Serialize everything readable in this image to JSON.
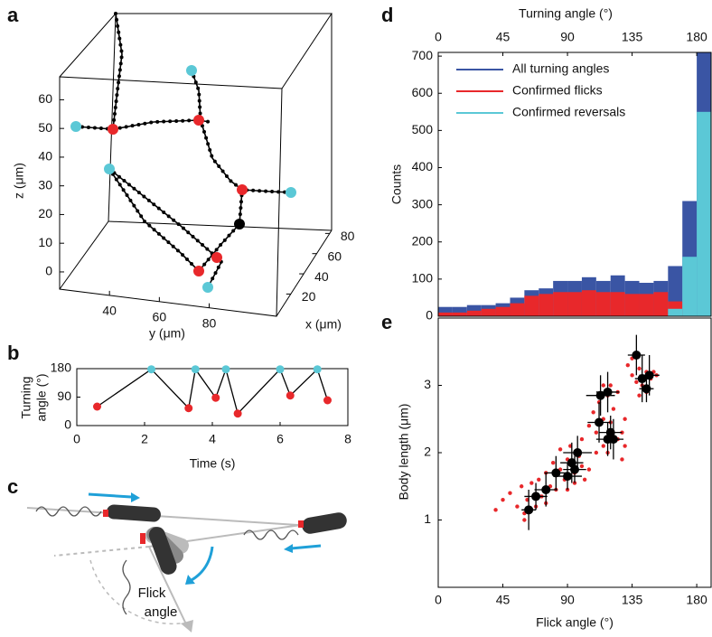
{
  "chart_data": [
    {
      "panel_label": "a",
      "type": "trajectory3d",
      "xlabel": "x (μm)",
      "ylabel": "y (μm)",
      "zlabel": "z (μm)",
      "xlim": [
        -2,
        83
      ],
      "xticks": [
        20,
        40,
        60,
        80
      ],
      "ylim": [
        20,
        107
      ],
      "yticks": [
        40,
        60,
        80
      ],
      "zlim": [
        -6,
        68
      ],
      "zticks": [
        0,
        10,
        20,
        30,
        40,
        50,
        60
      ]
    },
    {
      "panel_label": "b",
      "type": "line",
      "xlabel": "Time (s)",
      "ylabel": [
        "Turning",
        "angle (°)"
      ],
      "x": [
        0.6,
        2.2,
        3.3,
        3.5,
        4.1,
        4.4,
        4.75,
        6.0,
        6.3,
        7.1,
        7.4
      ],
      "y": [
        60,
        178,
        55,
        178,
        88,
        178,
        38,
        178,
        95,
        178,
        80
      ],
      "marker_colors": [
        "#e8282b",
        "#5bc8d6",
        "#e8282b",
        "#5bc8d6",
        "#e8282b",
        "#5bc8d6",
        "#e8282b",
        "#5bc8d6",
        "#e8282b",
        "#5bc8d6",
        "#e8282b"
      ],
      "line_color": "#000000",
      "xlim": [
        0,
        8
      ],
      "xticks": [
        0,
        2,
        4,
        6,
        8
      ],
      "ylim": [
        0,
        180
      ],
      "yticks": [
        0,
        90,
        180
      ]
    },
    {
      "panel_label": "c",
      "type": "diagram",
      "annotation": [
        "Flick",
        "angle"
      ]
    },
    {
      "panel_label": "d",
      "type": "histogram",
      "xlabel": "Turning angle (°)",
      "ylabel": "Counts",
      "bins": [
        0,
        10,
        20,
        30,
        40,
        50,
        60,
        70,
        80,
        90,
        100,
        110,
        120,
        130,
        140,
        150,
        160,
        170,
        180,
        190
      ],
      "series": [
        {
          "name": "All turning angles",
          "color": "#3a55a4",
          "values": [
            25,
            25,
            30,
            30,
            35,
            50,
            70,
            75,
            95,
            95,
            105,
            95,
            110,
            95,
            90,
            95,
            135,
            310,
            710
          ]
        },
        {
          "name": "Confirmed flicks",
          "color": "#e8282b",
          "values": [
            10,
            10,
            15,
            20,
            25,
            35,
            55,
            60,
            65,
            65,
            70,
            65,
            65,
            60,
            60,
            65,
            40,
            0,
            0
          ]
        },
        {
          "name": "Confirmed reversals",
          "color": "#5bc8d6",
          "values": [
            0,
            0,
            0,
            0,
            0,
            0,
            0,
            0,
            0,
            0,
            0,
            0,
            0,
            0,
            0,
            0,
            20,
            160,
            550
          ]
        }
      ],
      "legend": "upper left",
      "xlim": [
        0,
        190
      ],
      "xticks": [
        0,
        45,
        90,
        135,
        180
      ],
      "ylim": [
        0,
        710
      ],
      "yticks": [
        0,
        100,
        200,
        300,
        400,
        500,
        600,
        700
      ]
    },
    {
      "panel_label": "e",
      "type": "scatter",
      "xlabel": "Flick angle (°)",
      "ylabel": "Body length (μm)",
      "raw": {
        "color": "#e8282b",
        "x": [
          40,
          45,
          50,
          55,
          58,
          60,
          62,
          65,
          68,
          70,
          72,
          75,
          78,
          80,
          82,
          85,
          85,
          88,
          90,
          90,
          92,
          95,
          95,
          98,
          100,
          100,
          102,
          105,
          105,
          108,
          110,
          110,
          112,
          115,
          115,
          118,
          120,
          122,
          125,
          125,
          128,
          130,
          130,
          120,
          118,
          115,
          132,
          135,
          138,
          140,
          142,
          145,
          148,
          150,
          152,
          135,
          145,
          140,
          128,
          60,
          75
        ],
        "y": [
          1.15,
          1.3,
          1.4,
          1.2,
          1.5,
          1.0,
          1.3,
          1.55,
          1.2,
          1.6,
          1.35,
          1.7,
          1.5,
          1.85,
          1.45,
          1.75,
          2.05,
          1.6,
          1.9,
          1.45,
          2.1,
          1.7,
          1.55,
          1.95,
          2.2,
          1.8,
          1.6,
          1.75,
          2.4,
          2.6,
          2.3,
          2.0,
          2.75,
          2.5,
          2.1,
          2.0,
          2.45,
          2.65,
          2.2,
          2.9,
          2.3,
          2.1,
          2.5,
          3.0,
          2.85,
          3.0,
          3.3,
          3.15,
          3.05,
          3.25,
          3.0,
          3.2,
          3.1,
          3.2,
          3.15,
          3.4,
          2.9,
          2.85,
          1.9,
          1.1,
          1.25
        ]
      },
      "means": {
        "color": "#000000",
        "x": [
          63,
          68,
          75,
          82,
          90,
          93,
          95,
          97,
          112,
          113,
          118,
          118,
          120,
          122,
          138,
          142,
          145,
          147
        ],
        "y": [
          1.15,
          1.35,
          1.45,
          1.7,
          1.65,
          1.85,
          1.75,
          2.0,
          2.45,
          2.85,
          2.9,
          2.2,
          2.3,
          2.2,
          3.45,
          3.1,
          2.95,
          3.15
        ],
        "xerr": [
          5,
          8,
          8,
          8,
          10,
          8,
          8,
          10,
          8,
          10,
          8,
          8,
          8,
          7,
          6,
          5,
          5,
          7
        ],
        "yerr": [
          0.3,
          0.2,
          0.25,
          0.25,
          0.2,
          0.3,
          0.2,
          0.25,
          0.3,
          0.3,
          0.3,
          0.25,
          0.25,
          0.3,
          0.3,
          0.35,
          0.2,
          0.3
        ]
      },
      "xlim": [
        0,
        190
      ],
      "xticks": [
        0,
        45,
        90,
        135,
        180
      ],
      "ylim": [
        0,
        4
      ],
      "yticks": [
        1,
        2,
        3
      ]
    }
  ]
}
